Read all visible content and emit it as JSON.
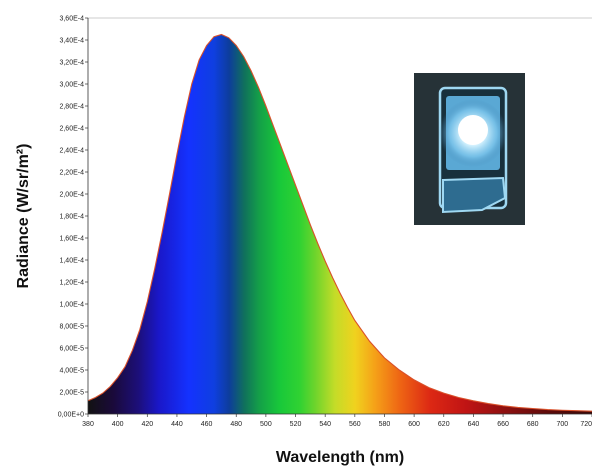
{
  "chart_data": {
    "type": "area",
    "title": "",
    "xlabel": "Wavelength (nm)",
    "ylabel": "Radiance (W/sr/m²)",
    "xlim": [
      380,
      720
    ],
    "ylim": [
      0,
      0.00036
    ],
    "x_ticks": [
      "380",
      "400",
      "420",
      "440",
      "460",
      "480",
      "500",
      "520",
      "540",
      "560",
      "580",
      "600",
      "620",
      "640",
      "660",
      "680",
      "700",
      "720"
    ],
    "y_ticks": [
      "0,00E+0",
      "2,00E-5",
      "4,00E-5",
      "6,00E-5",
      "8,00E-5",
      "1,00E-4",
      "1,20E-4",
      "1,40E-4",
      "1,60E-4",
      "1,80E-4",
      "2,00E-4",
      "2,20E-4",
      "2,40E-4",
      "2,60E-4",
      "2,80E-4",
      "3,00E-4",
      "3,20E-4",
      "3,40E-4",
      "3,60E-4"
    ],
    "grid": false,
    "legend": "none",
    "fill": "visible-spectrum gradient",
    "line_color": "#d9502a",
    "series": [
      {
        "x": [
          380,
          385,
          390,
          395,
          400,
          405,
          410,
          415,
          420,
          425,
          430,
          435,
          440,
          445,
          450,
          455,
          460,
          465,
          470,
          475,
          480,
          485,
          490,
          495,
          500,
          505,
          510,
          515,
          520,
          525,
          530,
          535,
          540,
          545,
          550,
          555,
          560,
          570,
          580,
          590,
          600,
          610,
          620,
          630,
          640,
          650,
          660,
          670,
          680,
          690,
          700,
          710,
          720
        ],
        "values": [
          1.2e-05,
          1.5e-05,
          1.9e-05,
          2.5e-05,
          3.3e-05,
          4.3e-05,
          5.8e-05,
          7.7e-05,
          0.000102,
          0.000132,
          0.000165,
          0.0002,
          0.000236,
          0.00027,
          0.0003,
          0.000322,
          0.000335,
          0.000343,
          0.000345,
          0.000342,
          0.000335,
          0.000325,
          0.000312,
          0.000297,
          0.00028,
          0.000262,
          0.000244,
          0.000226,
          0.000208,
          0.00019,
          0.000172,
          0.000155,
          0.000139,
          0.000124,
          0.00011,
          9.7e-05,
          8.5e-05,
          6.6e-05,
          5.1e-05,
          4e-05,
          3.1e-05,
          2.4e-05,
          1.9e-05,
          1.5e-05,
          1.2e-05,
          9.5e-06,
          7.5e-06,
          6e-06,
          5e-06,
          4e-06,
          3.4e-06,
          3e-06,
          2.6e-06
        ]
      }
    ]
  },
  "inset_photo": {
    "icon": "glowing-led-photo-icon",
    "glow_color": "#bfeaff"
  }
}
